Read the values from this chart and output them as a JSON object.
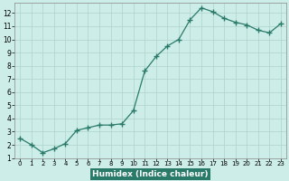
{
  "x": [
    0,
    1,
    2,
    3,
    4,
    5,
    6,
    7,
    8,
    9,
    10,
    11,
    12,
    13,
    14,
    15,
    16,
    17,
    18,
    19,
    20,
    21,
    22,
    23
  ],
  "y": [
    2.5,
    2.0,
    1.4,
    1.7,
    2.1,
    3.1,
    3.3,
    3.5,
    3.5,
    3.6,
    4.6,
    7.6,
    8.7,
    9.5,
    10.0,
    11.5,
    12.4,
    12.1,
    11.6,
    11.3,
    11.1,
    10.7,
    10.5,
    11.2
  ],
  "xlabel": "Humidex (Indice chaleur)",
  "bg_color": "#cdeee8",
  "grid_color": "#aed4cc",
  "line_color": "#2a7a6a",
  "marker_color": "#2a7a6a",
  "xlabel_bg": "#2a7a6a",
  "xlabel_fg": "#ffffff",
  "xlim": [
    -0.5,
    23.5
  ],
  "ylim": [
    1,
    12.8
  ],
  "yticks": [
    1,
    2,
    3,
    4,
    5,
    6,
    7,
    8,
    9,
    10,
    11,
    12
  ],
  "xticks": [
    0,
    1,
    2,
    3,
    4,
    5,
    6,
    7,
    8,
    9,
    10,
    11,
    12,
    13,
    14,
    15,
    16,
    17,
    18,
    19,
    20,
    21,
    22,
    23
  ]
}
